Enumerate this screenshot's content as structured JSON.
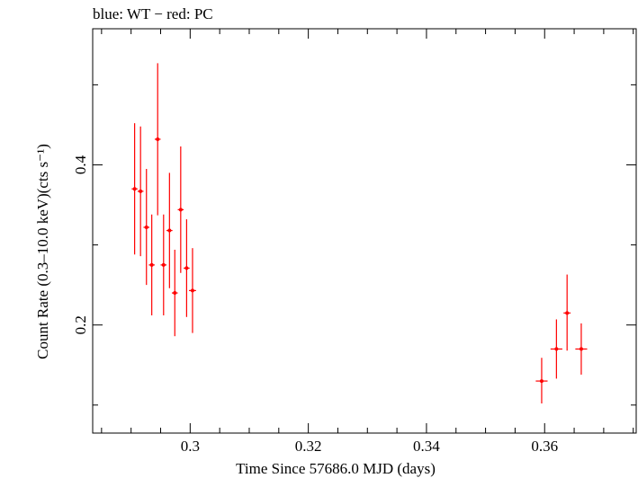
{
  "chart_data": {
    "type": "scatter",
    "title": "blue: WT − red: PC",
    "xlabel": "Time Since 57686.0 MJD (days)",
    "ylabel": "Count Rate (0.3–10.0 keV)(cts s⁻¹)",
    "xlim": [
      0.2835,
      0.3755
    ],
    "ylim": [
      0.065,
      0.57
    ],
    "x_ticks": [
      {
        "value": 0.3,
        "label": "0.3"
      },
      {
        "value": 0.32,
        "label": "0.32"
      },
      {
        "value": 0.34,
        "label": "0.34"
      },
      {
        "value": 0.36,
        "label": "0.36"
      }
    ],
    "y_ticks": [
      {
        "value": 0.2,
        "label": "0.2"
      },
      {
        "value": 0.4,
        "label": "0.4"
      }
    ],
    "grid": false,
    "series": [
      {
        "color": "#ff0000",
        "points": [
          {
            "x": 0.2906,
            "xerr": 0.0005,
            "y": 0.37,
            "ylo": 0.288,
            "yhi": 0.452
          },
          {
            "x": 0.2916,
            "xerr": 0.0005,
            "y": 0.367,
            "ylo": 0.286,
            "yhi": 0.448
          },
          {
            "x": 0.2926,
            "xerr": 0.0005,
            "y": 0.322,
            "ylo": 0.25,
            "yhi": 0.395
          },
          {
            "x": 0.2935,
            "xerr": 0.0005,
            "y": 0.275,
            "ylo": 0.212,
            "yhi": 0.338
          },
          {
            "x": 0.2945,
            "xerr": 0.0005,
            "y": 0.432,
            "ylo": 0.337,
            "yhi": 0.527
          },
          {
            "x": 0.2955,
            "xerr": 0.0005,
            "y": 0.275,
            "ylo": 0.212,
            "yhi": 0.338
          },
          {
            "x": 0.2965,
            "xerr": 0.0005,
            "y": 0.318,
            "ylo": 0.246,
            "yhi": 0.39
          },
          {
            "x": 0.2974,
            "xerr": 0.0005,
            "y": 0.24,
            "ylo": 0.186,
            "yhi": 0.294
          },
          {
            "x": 0.2984,
            "xerr": 0.0005,
            "y": 0.344,
            "ylo": 0.265,
            "yhi": 0.423
          },
          {
            "x": 0.2994,
            "xerr": 0.0005,
            "y": 0.271,
            "ylo": 0.21,
            "yhi": 0.332
          },
          {
            "x": 0.3004,
            "xerr": 0.0006,
            "y": 0.243,
            "ylo": 0.19,
            "yhi": 0.296
          },
          {
            "x": 0.3595,
            "xerr": 0.001,
            "y": 0.13,
            "ylo": 0.102,
            "yhi": 0.159
          },
          {
            "x": 0.362,
            "xerr": 0.001,
            "y": 0.17,
            "ylo": 0.133,
            "yhi": 0.207
          },
          {
            "x": 0.3638,
            "xerr": 0.0006,
            "y": 0.215,
            "ylo": 0.168,
            "yhi": 0.263
          },
          {
            "x": 0.3662,
            "xerr": 0.001,
            "y": 0.17,
            "ylo": 0.138,
            "yhi": 0.202
          }
        ]
      }
    ]
  }
}
